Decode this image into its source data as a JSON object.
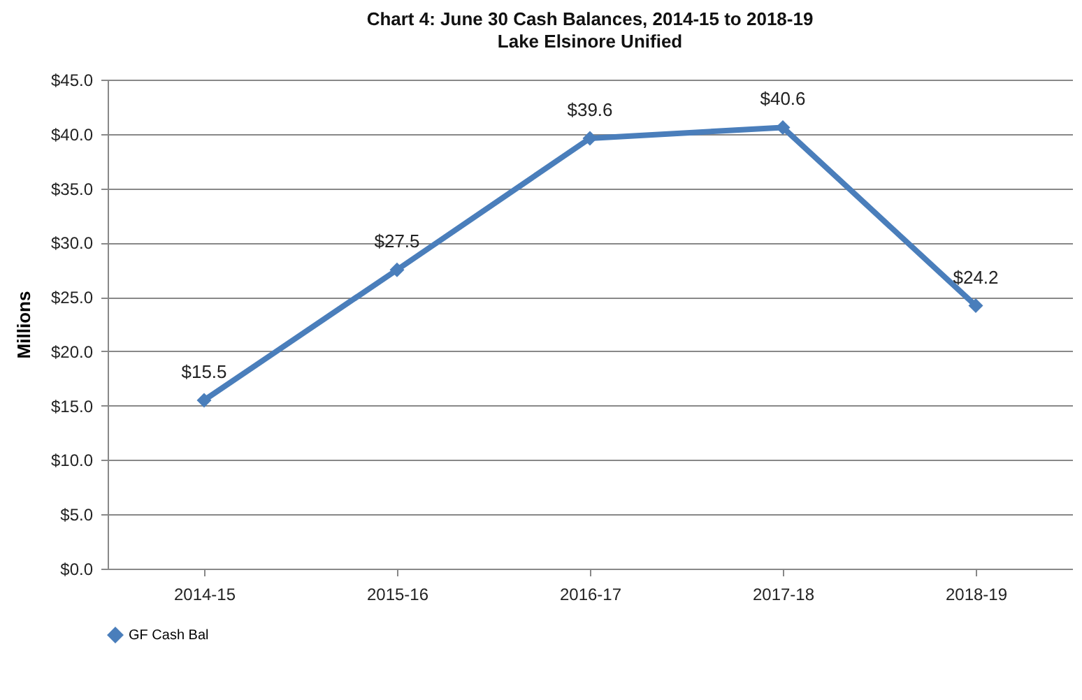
{
  "chart_data": {
    "type": "line",
    "title": "Chart 4: June 30 Cash Balances, 2014-15 to 2018-19",
    "subtitle": "Lake Elsinore Unified",
    "ylabel": "Millions",
    "categories": [
      "2014-15",
      "2015-16",
      "2016-17",
      "2017-18",
      "2018-19"
    ],
    "series": [
      {
        "name": "GF Cash Bal",
        "color": "#4a7ebb",
        "values": [
          15.5,
          27.5,
          39.6,
          40.6,
          24.2
        ],
        "value_labels": [
          "$15.5",
          "$27.5",
          "$39.6",
          "$40.6",
          "$24.2"
        ]
      }
    ],
    "ylim": [
      0,
      45
    ],
    "yticks": [
      {
        "value": 0,
        "label": "$0.0"
      },
      {
        "value": 5,
        "label": "$5.0"
      },
      {
        "value": 10,
        "label": "$10.0"
      },
      {
        "value": 15,
        "label": "$15.0"
      },
      {
        "value": 20,
        "label": "$20.0"
      },
      {
        "value": 25,
        "label": "$25.0"
      },
      {
        "value": 30,
        "label": "$30.0"
      },
      {
        "value": 35,
        "label": "$35.0"
      },
      {
        "value": 40,
        "label": "$40.0"
      },
      {
        "value": 45,
        "label": "$45.0"
      }
    ],
    "grid": "y",
    "legend": "bottom",
    "marker": "diamond",
    "line_style": "solid"
  }
}
